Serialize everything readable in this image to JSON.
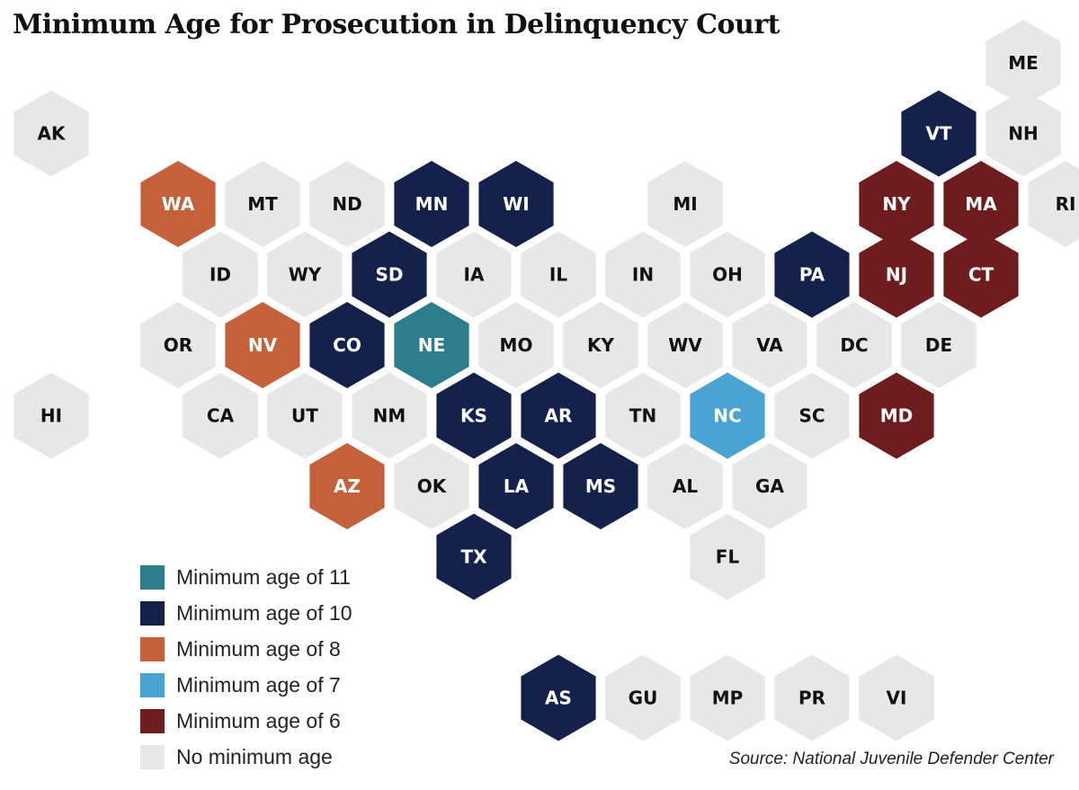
{
  "title": "Minimum Age for Prosecution in Delinquency Court",
  "source": "Source:  National Juvenile Defender Center",
  "colors": {
    "age11": "#2e7d8c",
    "age10": "#14214a",
    "age8": "#c4613a",
    "age7": "#4aa3d3",
    "age6": "#6e1c1e",
    "none": "#e6e7e9"
  },
  "legend": [
    {
      "category": "age11",
      "label": "Minimum age of 11"
    },
    {
      "category": "age10",
      "label": "Minimum age of 10"
    },
    {
      "category": "age8",
      "label": "Minimum age of 8"
    },
    {
      "category": "age7",
      "label": "Minimum age of 7"
    },
    {
      "category": "age6",
      "label": "Minimum age of 6"
    },
    {
      "category": "none",
      "label": "No minimum age"
    }
  ],
  "states": [
    {
      "abbr": "ME",
      "row": 0,
      "col": 11.5,
      "category": "none"
    },
    {
      "abbr": "AK",
      "row": 1,
      "col": 0,
      "category": "none"
    },
    {
      "abbr": "VT",
      "row": 1,
      "col": 10.5,
      "category": "age10"
    },
    {
      "abbr": "NH",
      "row": 1,
      "col": 11.5,
      "category": "none"
    },
    {
      "abbr": "WA",
      "row": 2,
      "col": 1.5,
      "category": "age8"
    },
    {
      "abbr": "MT",
      "row": 2,
      "col": 2.5,
      "category": "none"
    },
    {
      "abbr": "ND",
      "row": 2,
      "col": 3.5,
      "category": "none"
    },
    {
      "abbr": "MN",
      "row": 2,
      "col": 4.5,
      "category": "age10"
    },
    {
      "abbr": "WI",
      "row": 2,
      "col": 5.5,
      "category": "age10"
    },
    {
      "abbr": "MI",
      "row": 2,
      "col": 7.5,
      "category": "none"
    },
    {
      "abbr": "NY",
      "row": 2,
      "col": 10,
      "category": "age6"
    },
    {
      "abbr": "MA",
      "row": 2,
      "col": 11,
      "category": "age6"
    },
    {
      "abbr": "RI",
      "row": 2,
      "col": 12,
      "category": "none"
    },
    {
      "abbr": "ID",
      "row": 3,
      "col": 2,
      "category": "none"
    },
    {
      "abbr": "WY",
      "row": 3,
      "col": 3,
      "category": "none"
    },
    {
      "abbr": "SD",
      "row": 3,
      "col": 4,
      "category": "age10"
    },
    {
      "abbr": "IA",
      "row": 3,
      "col": 5,
      "category": "none"
    },
    {
      "abbr": "IL",
      "row": 3,
      "col": 6,
      "category": "none"
    },
    {
      "abbr": "IN",
      "row": 3,
      "col": 7,
      "category": "none"
    },
    {
      "abbr": "OH",
      "row": 3,
      "col": 8,
      "category": "none"
    },
    {
      "abbr": "PA",
      "row": 3,
      "col": 9,
      "category": "age10"
    },
    {
      "abbr": "NJ",
      "row": 3,
      "col": 10,
      "category": "age6"
    },
    {
      "abbr": "CT",
      "row": 3,
      "col": 11,
      "category": "age6"
    },
    {
      "abbr": "OR",
      "row": 4,
      "col": 1.5,
      "category": "none"
    },
    {
      "abbr": "NV",
      "row": 4,
      "col": 2.5,
      "category": "age8"
    },
    {
      "abbr": "CO",
      "row": 4,
      "col": 3.5,
      "category": "age10"
    },
    {
      "abbr": "NE",
      "row": 4,
      "col": 4.5,
      "category": "age11"
    },
    {
      "abbr": "MO",
      "row": 4,
      "col": 5.5,
      "category": "none"
    },
    {
      "abbr": "KY",
      "row": 4,
      "col": 6.5,
      "category": "none"
    },
    {
      "abbr": "WV",
      "row": 4,
      "col": 7.5,
      "category": "none"
    },
    {
      "abbr": "VA",
      "row": 4,
      "col": 8.5,
      "category": "none"
    },
    {
      "abbr": "DC",
      "row": 4,
      "col": 9.5,
      "category": "none"
    },
    {
      "abbr": "DE",
      "row": 4,
      "col": 10.5,
      "category": "none"
    },
    {
      "abbr": "HI",
      "row": 5,
      "col": 0,
      "category": "none"
    },
    {
      "abbr": "CA",
      "row": 5,
      "col": 2,
      "category": "none"
    },
    {
      "abbr": "UT",
      "row": 5,
      "col": 3,
      "category": "none"
    },
    {
      "abbr": "NM",
      "row": 5,
      "col": 4,
      "category": "none"
    },
    {
      "abbr": "KS",
      "row": 5,
      "col": 5,
      "category": "age10"
    },
    {
      "abbr": "AR",
      "row": 5,
      "col": 6,
      "category": "age10"
    },
    {
      "abbr": "TN",
      "row": 5,
      "col": 7,
      "category": "none"
    },
    {
      "abbr": "NC",
      "row": 5,
      "col": 8,
      "category": "age7"
    },
    {
      "abbr": "SC",
      "row": 5,
      "col": 9,
      "category": "none"
    },
    {
      "abbr": "MD",
      "row": 5,
      "col": 10,
      "category": "age6"
    },
    {
      "abbr": "AZ",
      "row": 6,
      "col": 3.5,
      "category": "age8"
    },
    {
      "abbr": "OK",
      "row": 6,
      "col": 4.5,
      "category": "none"
    },
    {
      "abbr": "LA",
      "row": 6,
      "col": 5.5,
      "category": "age10"
    },
    {
      "abbr": "MS",
      "row": 6,
      "col": 6.5,
      "category": "age10"
    },
    {
      "abbr": "AL",
      "row": 6,
      "col": 7.5,
      "category": "none"
    },
    {
      "abbr": "GA",
      "row": 6,
      "col": 8.5,
      "category": "none"
    },
    {
      "abbr": "TX",
      "row": 7,
      "col": 5,
      "category": "age10"
    },
    {
      "abbr": "FL",
      "row": 7,
      "col": 8,
      "category": "none"
    },
    {
      "abbr": "AS",
      "row": 9,
      "col": 6,
      "category": "age10"
    },
    {
      "abbr": "GU",
      "row": 9,
      "col": 7,
      "category": "none"
    },
    {
      "abbr": "MP",
      "row": 9,
      "col": 8,
      "category": "none"
    },
    {
      "abbr": "PR",
      "row": 9,
      "col": 9,
      "category": "none"
    },
    {
      "abbr": "VI",
      "row": 9,
      "col": 10,
      "category": "none"
    }
  ]
}
